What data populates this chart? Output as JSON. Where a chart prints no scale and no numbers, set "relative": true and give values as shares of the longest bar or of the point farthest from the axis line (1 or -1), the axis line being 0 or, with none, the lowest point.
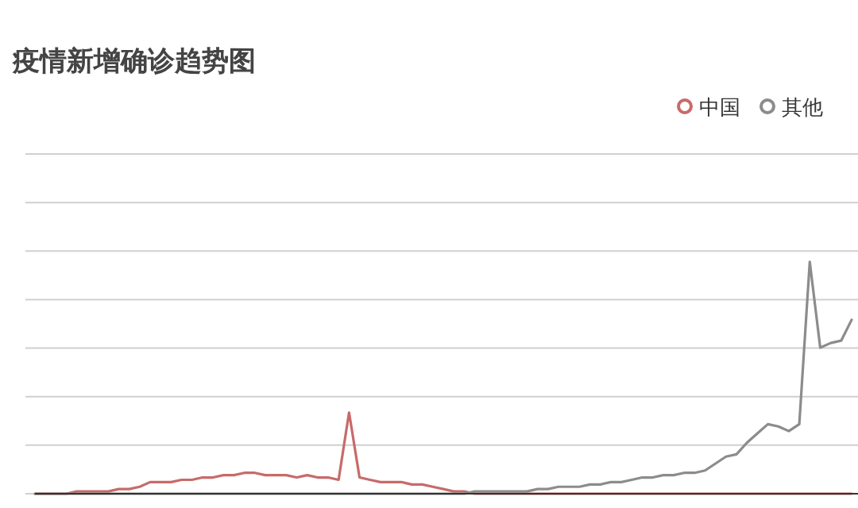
{
  "chart_data": {
    "type": "line",
    "title": "疫情新增确诊趋势图",
    "relative": true,
    "grid": "y",
    "legend": "top right",
    "categories": [
      null,
      null,
      null,
      null,
      null,
      null,
      null,
      null,
      null,
      null,
      null,
      null,
      null,
      null,
      null,
      null,
      null,
      null,
      null,
      null,
      null,
      null,
      null,
      null,
      null,
      null,
      null,
      null,
      null,
      null,
      null,
      null,
      null,
      null,
      null,
      null,
      null,
      null,
      null,
      null,
      null,
      null,
      null,
      null,
      null,
      null,
      null,
      null,
      null,
      null,
      null,
      null,
      null,
      null,
      null,
      null,
      null,
      null,
      null,
      null,
      null,
      null,
      null,
      null,
      null,
      null,
      null,
      null,
      null,
      null,
      null,
      null,
      null,
      null,
      null,
      null,
      null,
      null,
      null
    ],
    "series": [
      {
        "name": "中国",
        "color": "#c86a6a",
        "values": [
          0,
          0,
          0,
          0,
          0.01,
          0.01,
          0.01,
          0.01,
          0.02,
          0.02,
          0.03,
          0.05,
          0.05,
          0.05,
          0.06,
          0.06,
          0.07,
          0.07,
          0.08,
          0.08,
          0.09,
          0.09,
          0.08,
          0.08,
          0.08,
          0.07,
          0.08,
          0.07,
          0.07,
          0.06,
          0.35,
          0.07,
          0.06,
          0.05,
          0.05,
          0.05,
          0.04,
          0.04,
          0.03,
          0.02,
          0.01,
          0.01,
          0,
          0,
          0,
          0,
          0,
          0,
          0,
          0,
          0,
          0,
          0,
          0,
          0,
          0,
          0,
          0,
          0,
          0,
          0,
          0,
          0,
          0,
          0,
          0,
          0,
          0,
          0,
          0,
          0,
          0,
          0,
          0,
          0,
          0,
          0,
          0,
          0
        ]
      },
      {
        "name": "其他",
        "color": "#8c8c8c",
        "values": [
          0,
          0,
          0,
          0,
          0,
          0,
          0,
          0,
          0,
          0,
          0,
          0,
          0,
          0,
          0,
          0,
          0,
          0,
          0,
          0,
          0,
          0,
          0,
          0,
          0,
          0,
          0,
          0,
          0,
          0,
          0,
          0,
          0,
          0,
          0,
          0,
          0,
          0,
          0,
          0,
          0,
          0,
          0.01,
          0.01,
          0.01,
          0.01,
          0.01,
          0.01,
          0.02,
          0.02,
          0.03,
          0.03,
          0.03,
          0.04,
          0.04,
          0.05,
          0.05,
          0.06,
          0.07,
          0.07,
          0.08,
          0.08,
          0.09,
          0.09,
          0.1,
          0.13,
          0.16,
          0.17,
          0.22,
          0.26,
          0.3,
          0.29,
          0.27,
          0.3,
          1,
          0.63,
          0.65,
          0.66,
          0.75
        ]
      }
    ]
  }
}
